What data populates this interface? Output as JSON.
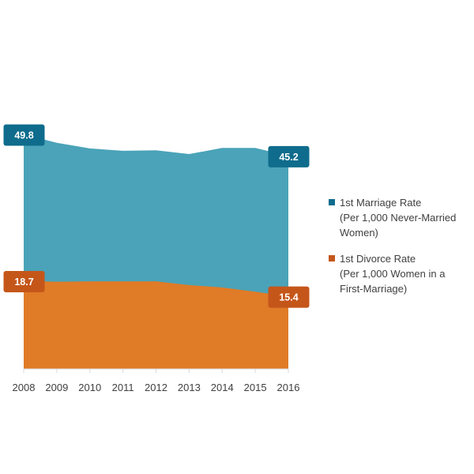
{
  "chart_data": {
    "type": "area",
    "x": [
      "2008",
      "2009",
      "2010",
      "2011",
      "2012",
      "2013",
      "2014",
      "2015",
      "2016"
    ],
    "series": [
      {
        "name": "1st Marriage Rate\n(Per 1,000 Never-Married\nWomen)",
        "values": [
          49.8,
          48.0,
          46.8,
          46.3,
          46.4,
          45.6,
          46.9,
          46.9,
          45.2
        ],
        "color": "#4aa3b8",
        "callout_color": "#0f6c8c"
      },
      {
        "name": "1st Divorce Rate\n(Per 1,000 Women in a\nFirst-Marriage)",
        "values": [
          18.7,
          18.5,
          18.6,
          18.6,
          18.6,
          17.8,
          17.3,
          16.4,
          15.4
        ],
        "color": "#e07b27",
        "callout_color": "#c5561a"
      }
    ],
    "callouts": [
      {
        "series": 0,
        "index": 0,
        "label": "49.8"
      },
      {
        "series": 0,
        "index": 8,
        "label": "45.2"
      },
      {
        "series": 1,
        "index": 0,
        "label": "18.7"
      },
      {
        "series": 1,
        "index": 8,
        "label": "15.4"
      }
    ],
    "ylim": [
      0,
      50
    ],
    "grid": false,
    "legend_position": "right"
  }
}
